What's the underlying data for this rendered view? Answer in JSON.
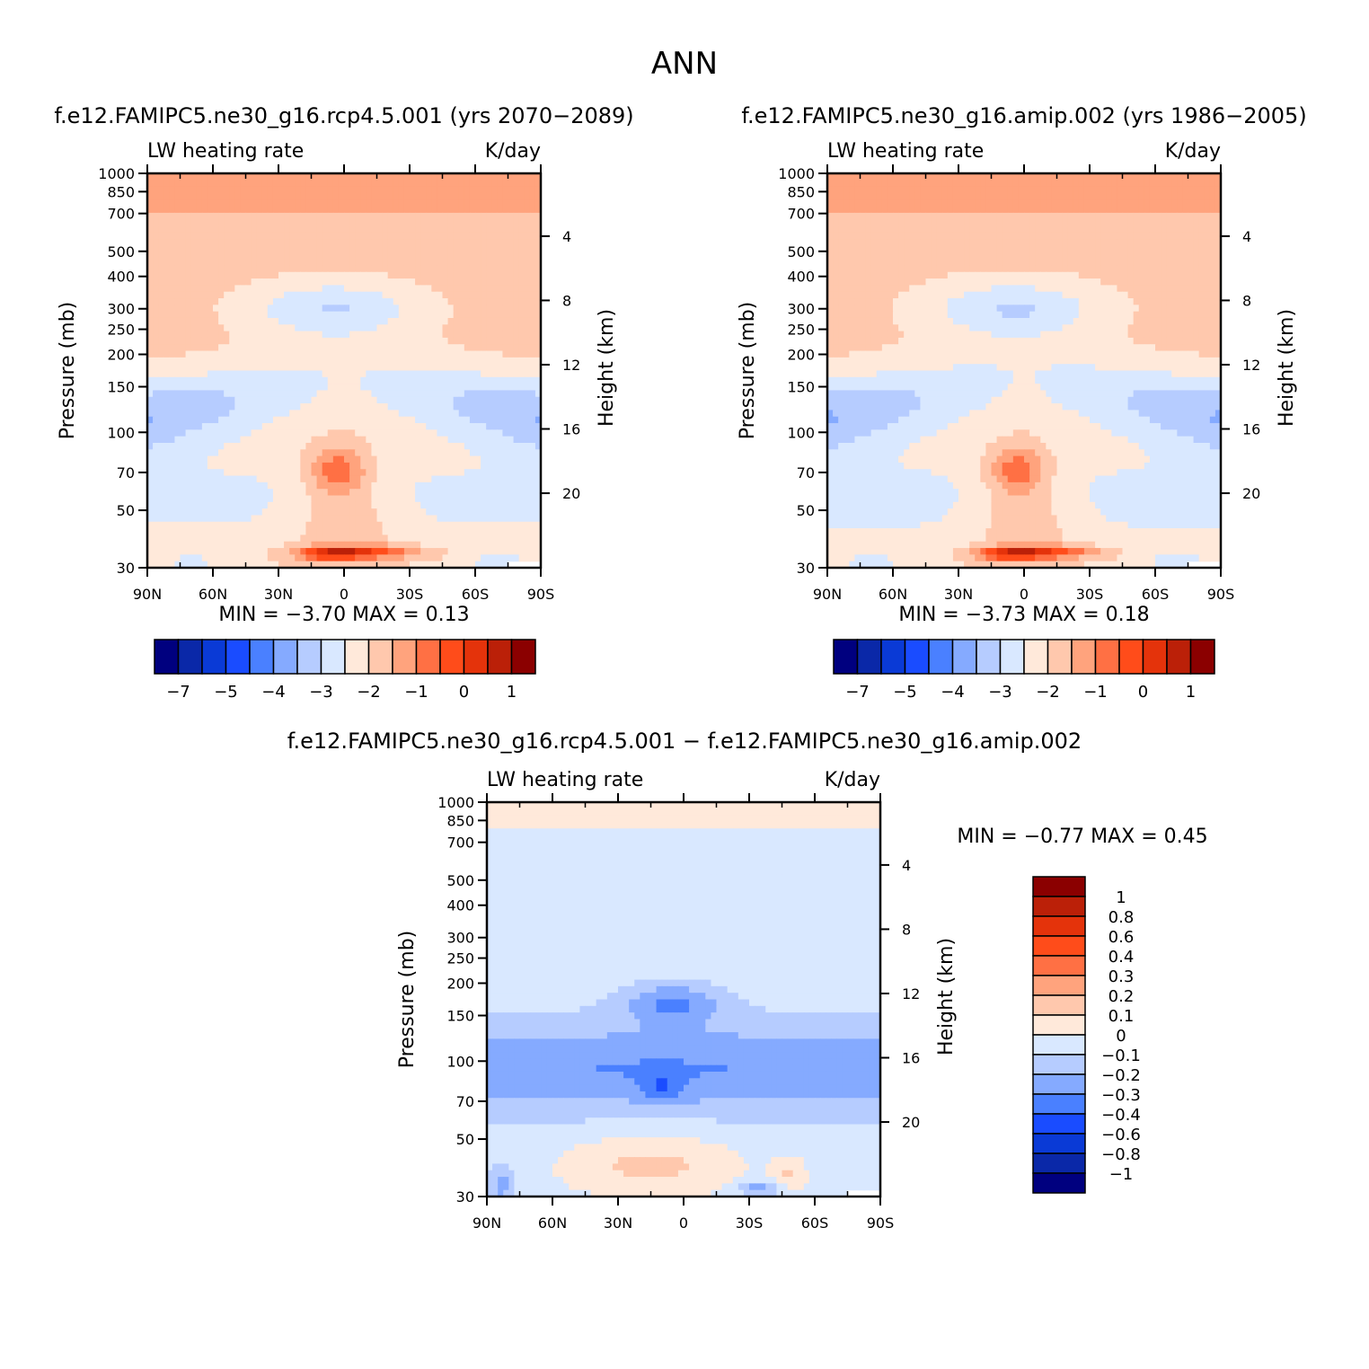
{
  "figure": {
    "title": "ANN",
    "diff_title": "f.e12.FAMIPC5.ne30_g16.rcp4.5.001 − f.e12.FAMIPC5.ne30_g16.amip.002"
  },
  "chart_data": [
    {
      "type": "heatmap",
      "title": "f.e12.FAMIPC5.ne30_g16.rcp4.5.001 (yrs 2070−2089)",
      "variable": "LW heating rate",
      "units": "K/day",
      "xlabel": "",
      "ylabel": "Pressure (mb)",
      "y2label": "Height (km)",
      "x_ticks": [
        "90N",
        "60N",
        "30N",
        "0",
        "30S",
        "60S",
        "90S"
      ],
      "xlim": [
        90,
        -90
      ],
      "y_ticks": [
        30,
        50,
        70,
        100,
        150,
        200,
        250,
        300,
        400,
        500,
        700,
        850,
        1000
      ],
      "ylim": [
        1000,
        30
      ],
      "y_scale": "log",
      "y2_ticks": [
        20,
        16,
        12,
        8,
        4
      ],
      "stats": {
        "min_label": "MIN =",
        "min": "−3.70",
        "max_label": "MAX =",
        "max": "0.13"
      },
      "colorbar": {
        "orientation": "horizontal",
        "colors": [
          "#00007f",
          "#0a28a8",
          "#0a3ad6",
          "#1a4cff",
          "#4a80ff",
          "#85aaff",
          "#b6ccff",
          "#d9e8ff",
          "#ffe9da",
          "#ffc8ad",
          "#ffa37d",
          "#ff7044",
          "#ff4c1a",
          "#e4330b",
          "#bb2008",
          "#8b0000"
        ],
        "labels": [
          "−7",
          "−5",
          "−4",
          "−3",
          "−2",
          "−1",
          "0",
          "1"
        ]
      }
    },
    {
      "type": "heatmap",
      "title": "f.e12.FAMIPC5.ne30_g16.amip.002 (yrs 1986−2005)",
      "variable": "LW heating rate",
      "units": "K/day",
      "xlabel": "",
      "ylabel": "Pressure (mb)",
      "y2label": "Height (km)",
      "x_ticks": [
        "90N",
        "60N",
        "30N",
        "0",
        "30S",
        "60S",
        "90S"
      ],
      "xlim": [
        90,
        -90
      ],
      "y_ticks": [
        30,
        50,
        70,
        100,
        150,
        200,
        250,
        300,
        400,
        500,
        700,
        850,
        1000
      ],
      "ylim": [
        1000,
        30
      ],
      "y_scale": "log",
      "y2_ticks": [
        20,
        16,
        12,
        8,
        4
      ],
      "stats": {
        "min_label": "MIN =",
        "min": "−3.73",
        "max_label": "MAX =",
        "max": "0.18"
      },
      "colorbar": {
        "orientation": "horizontal",
        "colors": [
          "#00007f",
          "#0a28a8",
          "#0a3ad6",
          "#1a4cff",
          "#4a80ff",
          "#85aaff",
          "#b6ccff",
          "#d9e8ff",
          "#ffe9da",
          "#ffc8ad",
          "#ffa37d",
          "#ff7044",
          "#ff4c1a",
          "#e4330b",
          "#bb2008",
          "#8b0000"
        ],
        "labels": [
          "−7",
          "−5",
          "−4",
          "−3",
          "−2",
          "−1",
          "0",
          "1"
        ]
      }
    },
    {
      "type": "heatmap",
      "title": "",
      "variable": "LW heating rate",
      "units": "K/day",
      "xlabel": "",
      "ylabel": "Pressure (mb)",
      "y2label": "Height (km)",
      "x_ticks": [
        "90N",
        "60N",
        "30N",
        "0",
        "30S",
        "60S",
        "90S"
      ],
      "xlim": [
        90,
        -90
      ],
      "y_ticks": [
        30,
        50,
        70,
        100,
        150,
        200,
        250,
        300,
        400,
        500,
        700,
        850,
        1000
      ],
      "ylim": [
        1000,
        30
      ],
      "y_scale": "log",
      "y2_ticks": [
        20,
        16,
        12,
        8,
        4
      ],
      "stats": {
        "min_label": "MIN =",
        "min": "−0.77",
        "max_label": "MAX =",
        "max": "0.45"
      },
      "colorbar": {
        "orientation": "vertical",
        "colors": [
          "#00007f",
          "#0a28a8",
          "#0a3ad6",
          "#1a4cff",
          "#4a80ff",
          "#85aaff",
          "#b6ccff",
          "#d9e8ff",
          "#ffe9da",
          "#ffc8ad",
          "#ffa37d",
          "#ff7044",
          "#ff4c1a",
          "#e4330b",
          "#bb2008",
          "#8b0000"
        ],
        "labels": [
          "1",
          "0.8",
          "0.6",
          "0.4",
          "0.3",
          "0.2",
          "0.1",
          "0",
          "−0.1",
          "−0.2",
          "−0.3",
          "−0.4",
          "−0.6",
          "−0.8",
          "−1"
        ]
      }
    }
  ]
}
